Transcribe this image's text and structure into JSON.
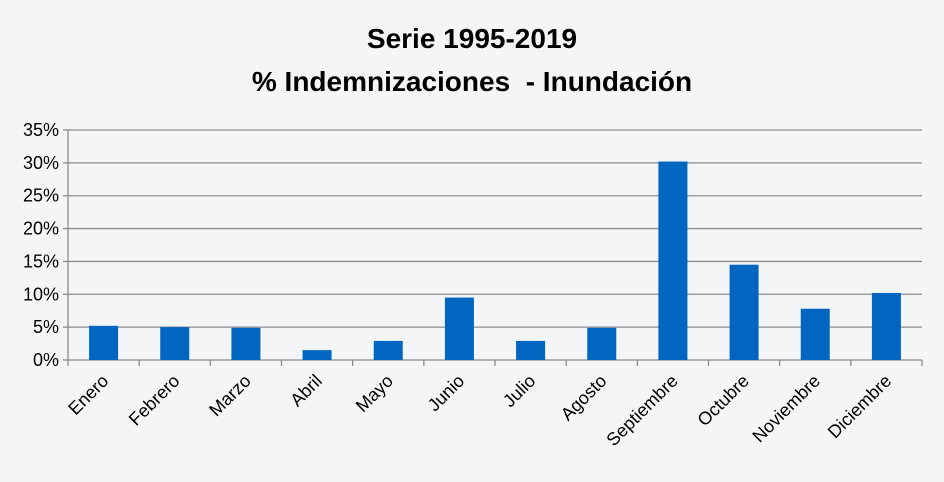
{
  "chart_data": {
    "type": "bar",
    "title": "Serie 1995-2019",
    "subtitle": "% Indemnizaciones  - Inundación",
    "xlabel": "",
    "ylabel": "",
    "categories": [
      "Enero",
      "Febrero",
      "Marzo",
      "Abril",
      "Mayo",
      "Junio",
      "Julio",
      "Agosto",
      "Septiembre",
      "Octubre",
      "Noviembre",
      "Diciembre"
    ],
    "values": [
      5.2,
      5.0,
      4.9,
      1.5,
      2.9,
      9.5,
      2.9,
      4.9,
      30.2,
      14.5,
      7.8,
      10.2
    ],
    "ylim": [
      0,
      35
    ],
    "yticks": [
      0,
      5,
      10,
      15,
      20,
      25,
      30,
      35
    ],
    "ytick_labels": [
      "0%",
      "5%",
      "10%",
      "15%",
      "20%",
      "25%",
      "30%",
      "35%"
    ],
    "grid": true,
    "legend": "none",
    "bar_color": "#0066bf",
    "grid_color": "#8c8c8c",
    "background_color": "#f4f5f7"
  }
}
